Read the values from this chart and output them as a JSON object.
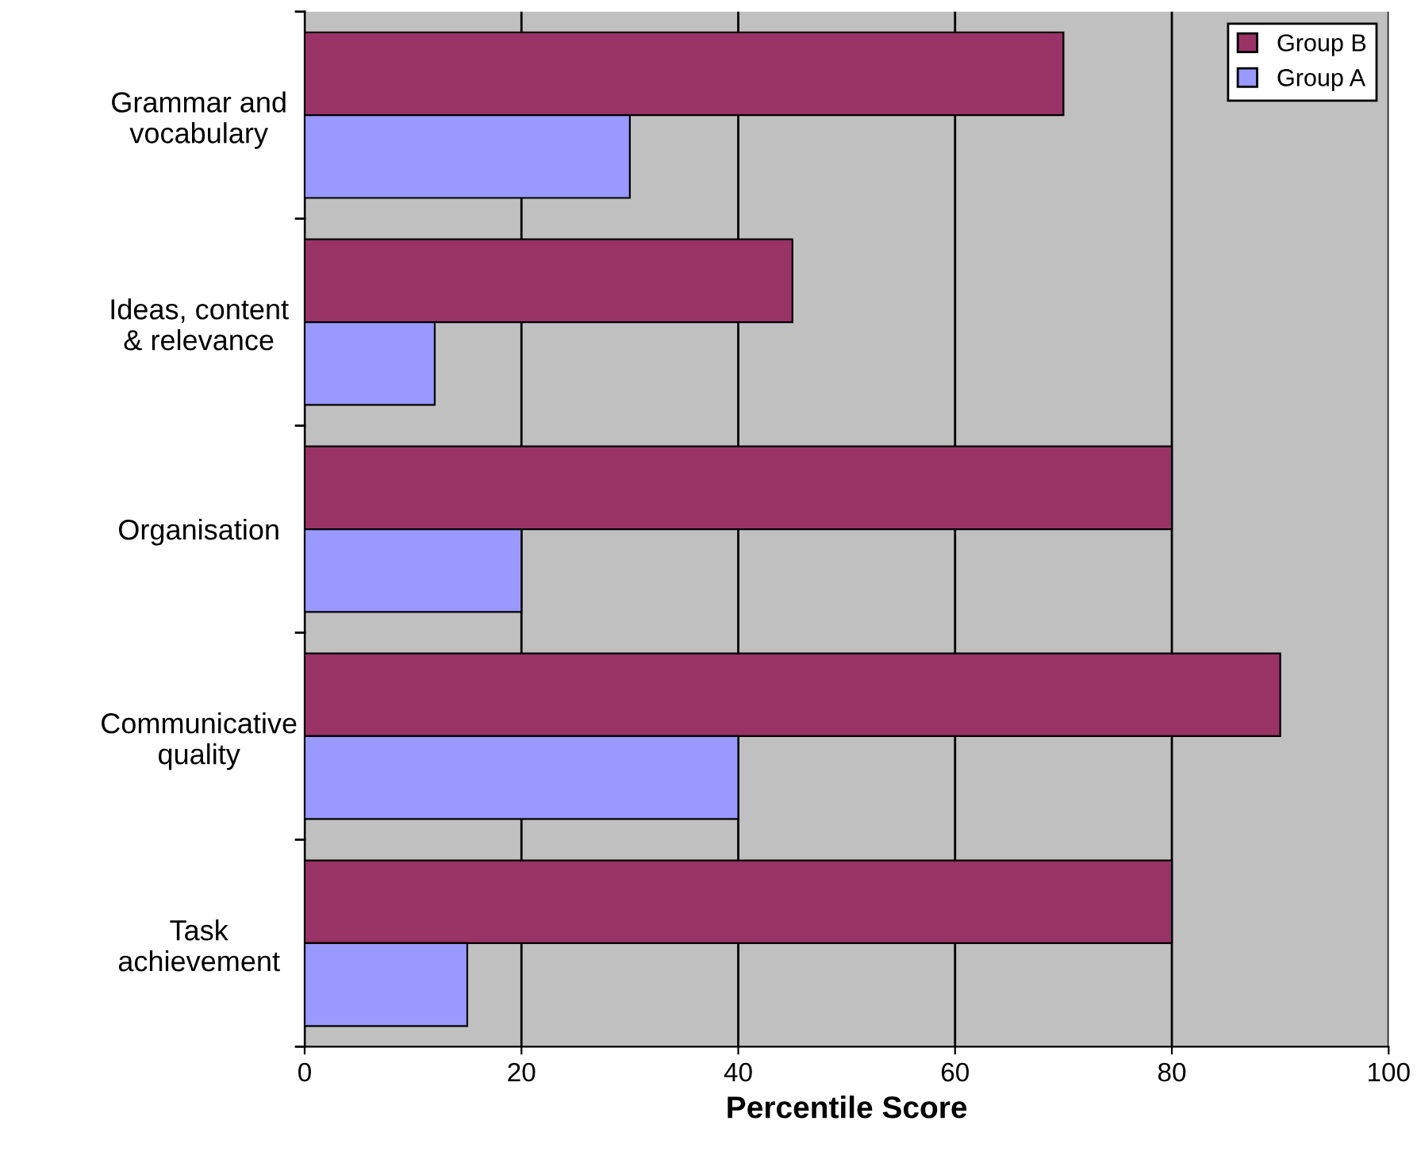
{
  "chart_data": {
    "type": "bar",
    "orientation": "horizontal",
    "xlabel": "Percentile Score",
    "categories": [
      "Grammar and\nvocabulary",
      "Ideas, content\n& relevance",
      "Organisation",
      "Communicative\nquality",
      "Task\nachievement"
    ],
    "series": [
      {
        "name": "Group B",
        "color": "#993366",
        "values": [
          70,
          45,
          80,
          90,
          80
        ]
      },
      {
        "name": "Group A",
        "color": "#9999ff",
        "values": [
          30,
          12,
          20,
          40,
          15
        ]
      }
    ],
    "xlim": [
      0,
      100
    ],
    "xticks": [
      0,
      20,
      40,
      60,
      80,
      100
    ],
    "grid": "x",
    "legend": "top right"
  }
}
